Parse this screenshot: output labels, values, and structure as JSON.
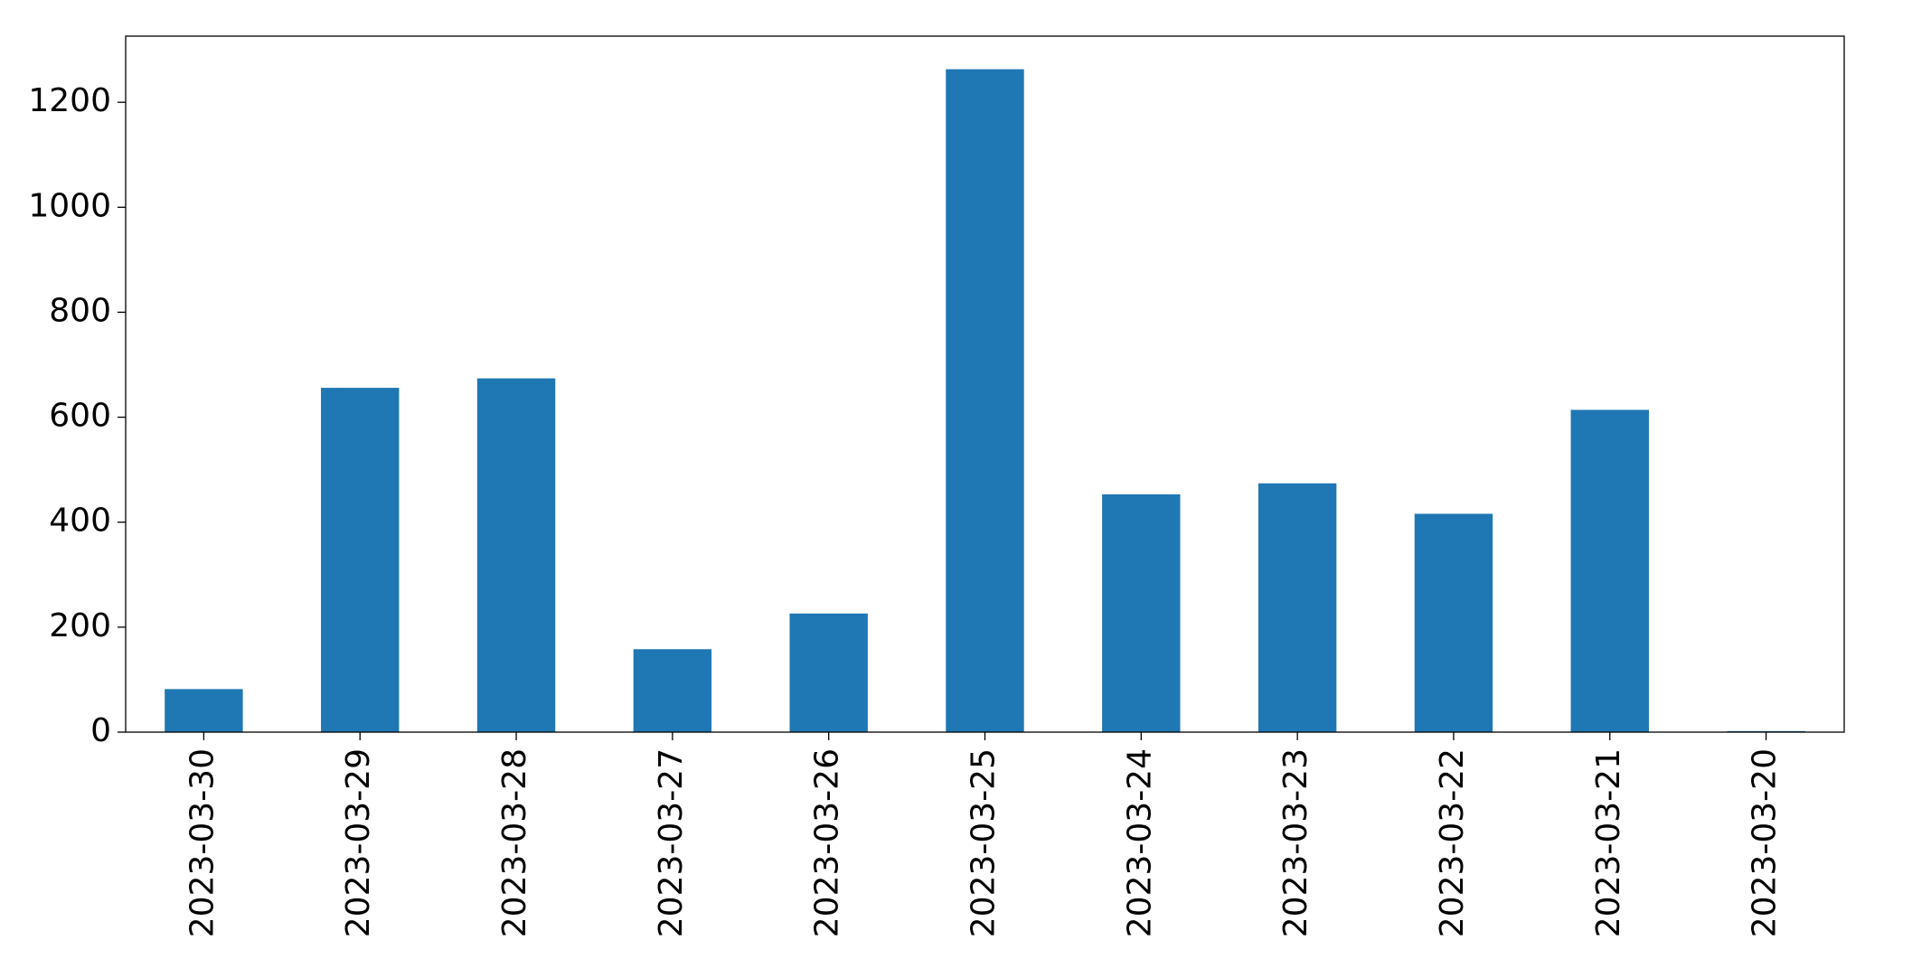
{
  "chart_data": {
    "type": "bar",
    "categories": [
      "2023-03-30",
      "2023-03-29",
      "2023-03-28",
      "2023-03-27",
      "2023-03-26",
      "2023-03-25",
      "2023-03-24",
      "2023-03-23",
      "2023-03-22",
      "2023-03-21",
      "2023-03-20"
    ],
    "values": [
      82,
      656,
      674,
      158,
      226,
      1263,
      453,
      474,
      416,
      614,
      2
    ],
    "color": "#1f77b4",
    "ylim": [
      0,
      1326
    ],
    "yticks": [
      0,
      200,
      400,
      600,
      800,
      1000,
      1200
    ],
    "grid": false
  }
}
